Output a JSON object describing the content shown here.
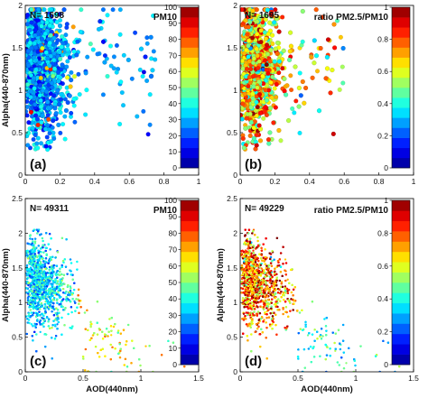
{
  "figure": {
    "colormap": "jet",
    "colormap_stops": [
      "#00008f",
      "#0000ff",
      "#0080ff",
      "#00ffff",
      "#80ff80",
      "#ffff00",
      "#ff8000",
      "#ff0000",
      "#800000"
    ]
  },
  "chart_data": [
    {
      "type": "scatter",
      "panel_label": "(a)",
      "n_text": "N= 1698",
      "color_title": "PM10",
      "xlabel": "",
      "ylabel": "Alpha(440-870nm)",
      "xlim": [
        0,
        1
      ],
      "ylim": [
        0,
        2
      ],
      "xticks": [
        "0",
        "0.2",
        "0.4",
        "0.6",
        "0.8",
        "1"
      ],
      "yticks": [
        "0",
        "0.5",
        "1",
        "1.5",
        "2"
      ],
      "colorbar_range": [
        0,
        100
      ],
      "colorbar_ticks": [
        "0",
        "10",
        "20",
        "30",
        "40",
        "50",
        "60",
        "70",
        "80",
        "90",
        "100"
      ],
      "n_points": 1698,
      "x_range": [
        0.0,
        0.75
      ],
      "y_range": [
        0.2,
        1.95
      ],
      "dominant_color_range": [
        10,
        35
      ],
      "grid": false,
      "marker_size": "large"
    },
    {
      "type": "scatter",
      "panel_label": "(b)",
      "n_text": "N= 1695",
      "color_title": "ratio PM2.5/PM10",
      "xlabel": "",
      "ylabel": "",
      "xlim": [
        0,
        1
      ],
      "ylim": [
        0,
        2
      ],
      "xticks": [
        "0",
        "0.2",
        "0.4",
        "0.6",
        "0.8",
        "1"
      ],
      "yticks": [
        "0",
        "0.5",
        "1",
        "1.5",
        "2"
      ],
      "colorbar_range": [
        0,
        1
      ],
      "colorbar_ticks": [
        "0",
        "0.2",
        "0.4",
        "0.6",
        "0.8",
        "1"
      ],
      "n_points": 1695,
      "x_range": [
        0.0,
        0.6
      ],
      "y_range": [
        0.2,
        1.95
      ],
      "dominant_color_range": [
        0.4,
        0.9
      ],
      "grid": false,
      "marker_size": "large"
    },
    {
      "type": "scatter",
      "panel_label": "(c)",
      "n_text": "N= 49311",
      "color_title": "PM10",
      "xlabel": "AOD(440nm)",
      "ylabel": "Alpha(440-870nm)",
      "xlim": [
        0,
        1.5
      ],
      "ylim": [
        0,
        2.5
      ],
      "xticks": [
        "0",
        "0.5",
        "1",
        "1.5"
      ],
      "yticks": [
        "0",
        "0.5",
        "1",
        "1.5",
        "2",
        "2.5"
      ],
      "colorbar_range": [
        0,
        100
      ],
      "colorbar_ticks": [
        "0",
        "10",
        "20",
        "30",
        "40",
        "50",
        "60",
        "70",
        "80",
        "90",
        "100"
      ],
      "n_points": 49311,
      "x_range": [
        0.0,
        1.4
      ],
      "y_range": [
        0.0,
        2.05
      ],
      "dominant_color_range": [
        15,
        45
      ],
      "grid": false,
      "marker_size": "small"
    },
    {
      "type": "scatter",
      "panel_label": "(d)",
      "n_text": "N= 49229",
      "color_title": "ratio PM2.5/PM10",
      "xlabel": "AOD(440nm)",
      "ylabel": "Alpha(440-870nm)",
      "xlim": [
        0,
        1.5
      ],
      "ylim": [
        0,
        2.5
      ],
      "xticks": [
        "0",
        "0.5",
        "1",
        "1.5"
      ],
      "yticks": [
        "0",
        "0.5",
        "1",
        "1.5",
        "2",
        "2.5"
      ],
      "colorbar_range": [
        0,
        1
      ],
      "colorbar_ticks": [
        "0",
        "0.2",
        "0.4",
        "0.6",
        "0.8",
        "1"
      ],
      "n_points": 49229,
      "x_range": [
        0.0,
        1.4
      ],
      "y_range": [
        0.0,
        2.05
      ],
      "dominant_color_range": [
        0.5,
        1.0
      ],
      "grid": false,
      "marker_size": "small"
    }
  ]
}
